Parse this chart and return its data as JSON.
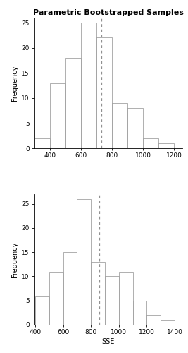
{
  "title": "Parametric Bootstrapped Samples",
  "panel1": {
    "bin_edges": [
      300,
      400,
      500,
      600,
      700,
      800,
      900,
      1000,
      1100,
      1200
    ],
    "frequencies": [
      2,
      13,
      18,
      25,
      22,
      9,
      8,
      2,
      1
    ],
    "dotted_line_x": 730,
    "xlim": [
      295,
      1255
    ],
    "ylim": [
      0,
      26
    ],
    "yticks": [
      0,
      5,
      10,
      15,
      20,
      25
    ],
    "xticks": [
      400,
      600,
      800,
      1000,
      1200
    ],
    "ylabel": "Frequency",
    "xlabel": ""
  },
  "panel2": {
    "bin_edges": [
      400,
      500,
      600,
      700,
      800,
      900,
      1000,
      1100,
      1200,
      1300,
      1400
    ],
    "frequencies": [
      6,
      11,
      15,
      26,
      13,
      10,
      11,
      5,
      2,
      1
    ],
    "dotted_line_x": 860,
    "xlim": [
      390,
      1455
    ],
    "ylim": [
      0,
      27
    ],
    "yticks": [
      0,
      5,
      10,
      15,
      20,
      25
    ],
    "xticks": [
      400,
      600,
      800,
      1000,
      1200,
      1400
    ],
    "ylabel": "Frequency",
    "xlabel": "SSE"
  },
  "bar_color": "#ffffff",
  "bar_edge_color": "#909090",
  "dotted_line_color": "#909090",
  "background_color": "#ffffff",
  "title_fontsize": 8,
  "axis_label_fontsize": 7,
  "tick_fontsize": 6.5
}
